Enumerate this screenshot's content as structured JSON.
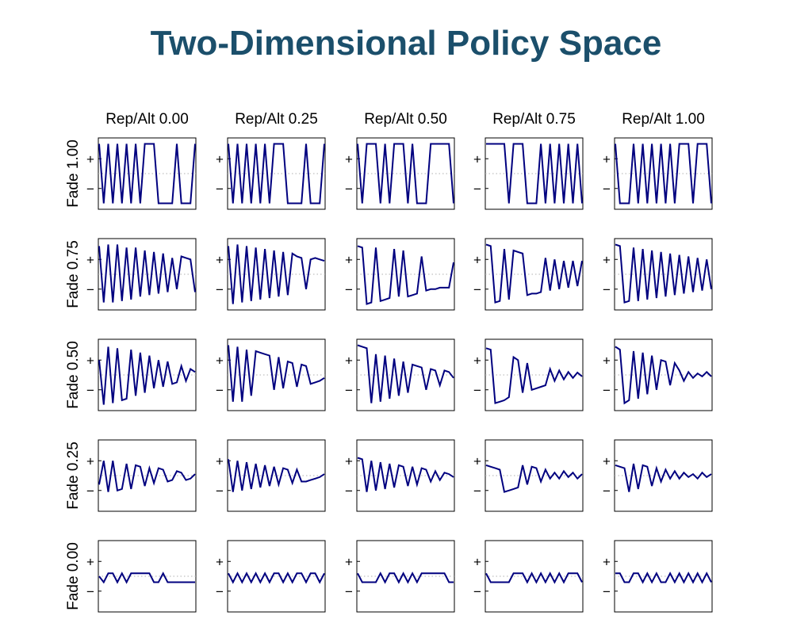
{
  "title": "Two-Dimensional Policy Space",
  "chart_data": {
    "type": "line",
    "columns": [
      "Rep/Alt 0.00",
      "Rep/Alt 0.25",
      "Rep/Alt 0.50",
      "Rep/Alt 0.75",
      "Rep/Alt 1.00"
    ],
    "rows": [
      "Fade 1.00",
      "Fade 0.75",
      "Fade 0.50",
      "Fade 0.25",
      "Fade 0.00"
    ],
    "y_tick_labels": [
      "+",
      "−"
    ],
    "ylim": [
      -1.2,
      1.2
    ],
    "line_color": "#00007f",
    "guide_color": "#b0b0b0",
    "grid": false,
    "panels": [
      [
        {
          "values": [
            1,
            -1,
            1,
            -1,
            1,
            -1,
            1,
            -1,
            1,
            -1,
            1,
            1,
            1,
            -1,
            -1,
            -1,
            -1,
            1,
            -1,
            -1,
            -1,
            1
          ]
        },
        {
          "values": [
            1,
            -1,
            1,
            -1,
            1,
            -1,
            1,
            -1,
            1,
            -1,
            1,
            1,
            1,
            -1,
            -1,
            -1,
            -1,
            1,
            -1,
            -1,
            -1,
            1
          ]
        },
        {
          "values": [
            1,
            -1,
            1,
            1,
            1,
            -1,
            1,
            -1,
            1,
            1,
            1,
            -1,
            1,
            -1,
            -1,
            -1,
            1,
            1,
            1,
            1,
            1,
            -1
          ]
        },
        {
          "values": [
            1,
            1,
            1,
            1,
            1,
            -1,
            1,
            1,
            1,
            -1,
            -1,
            -1,
            1,
            -1,
            1,
            -1,
            1,
            -1,
            1,
            -1,
            1,
            -1
          ]
        },
        {
          "values": [
            1,
            -1,
            -1,
            -1,
            1,
            -1,
            1,
            -1,
            1,
            -1,
            1,
            -1,
            1,
            -1,
            1,
            1,
            1,
            -1,
            1,
            1,
            1,
            -1
          ]
        }
      ],
      [
        {
          "values": [
            0.95,
            -0.95,
            1.0,
            -0.95,
            1.0,
            -0.9,
            0.9,
            -0.85,
            0.9,
            -0.75,
            0.8,
            -0.7,
            0.75,
            -0.65,
            0.7,
            -0.6,
            0.55,
            -0.5,
            0.6,
            0.55,
            0.5,
            -0.6
          ]
        },
        {
          "values": [
            0.95,
            -1.0,
            1.0,
            -0.95,
            0.95,
            -0.9,
            0.9,
            -0.85,
            0.85,
            -0.8,
            0.8,
            -0.75,
            0.75,
            -0.7,
            0.7,
            0.6,
            0.55,
            -0.5,
            0.5,
            0.55,
            0.5,
            0.45
          ]
        },
        {
          "values": [
            0.95,
            0.9,
            -1.0,
            -0.95,
            0.9,
            -0.9,
            -0.85,
            -0.8,
            0.85,
            -0.75,
            0.8,
            -0.75,
            -0.7,
            -0.65,
            0.6,
            -0.55,
            -0.5,
            -0.5,
            -0.45,
            -0.45,
            -0.45,
            0.4
          ]
        },
        {
          "values": [
            1.0,
            0.95,
            -0.95,
            -0.9,
            0.85,
            -0.85,
            0.8,
            0.75,
            0.7,
            -0.7,
            -0.65,
            -0.65,
            -0.6,
            0.55,
            -0.55,
            0.5,
            -0.5,
            0.45,
            -0.45,
            0.45,
            -0.4,
            0.45
          ]
        },
        {
          "values": [
            1.0,
            0.95,
            -0.95,
            -0.9,
            0.9,
            -0.9,
            0.85,
            -0.85,
            0.8,
            -0.8,
            0.75,
            -0.75,
            0.7,
            -0.7,
            0.65,
            -0.65,
            0.6,
            -0.6,
            0.55,
            -0.55,
            0.5,
            -0.5
          ]
        }
      ],
      [
        {
          "values": [
            0.5,
            -1.0,
            0.95,
            -0.95,
            0.9,
            -0.85,
            -0.8,
            0.85,
            -0.7,
            0.75,
            -0.6,
            0.65,
            -0.45,
            0.5,
            -0.4,
            0.45,
            -0.3,
            -0.25,
            0.3,
            -0.2,
            0.2,
            0.1
          ]
        },
        {
          "values": [
            1.0,
            -0.9,
            0.95,
            -0.9,
            0.85,
            -0.7,
            0.8,
            0.75,
            0.7,
            0.65,
            -0.5,
            0.6,
            -0.45,
            0.45,
            0.4,
            -0.4,
            0.35,
            0.3,
            -0.3,
            -0.25,
            -0.2,
            -0.1
          ]
        },
        {
          "values": [
            1.0,
            0.95,
            0.9,
            -0.95,
            0.7,
            -0.9,
            0.65,
            -0.8,
            0.55,
            -0.7,
            0.45,
            -0.6,
            0.35,
            0.3,
            0.25,
            -0.5,
            0.2,
            0.15,
            -0.35,
            0.15,
            0.1,
            -0.1
          ]
        },
        {
          "values": [
            0.9,
            0.85,
            -0.95,
            -0.9,
            -0.85,
            -0.75,
            0.6,
            0.5,
            -0.6,
            0.4,
            -0.5,
            -0.45,
            -0.4,
            -0.35,
            0.2,
            -0.2,
            0.15,
            -0.15,
            0.1,
            -0.1,
            0.08,
            -0.05
          ]
        },
        {
          "values": [
            0.95,
            0.85,
            -0.95,
            -0.85,
            0.8,
            -0.8,
            0.75,
            -0.65,
            0.65,
            -0.5,
            0.5,
            0.45,
            -0.35,
            0.4,
            0.15,
            -0.2,
            0.1,
            -0.1,
            0.05,
            -0.05,
            0.1,
            -0.05
          ]
        }
      ],
      [
        {
          "values": [
            -0.3,
            0.5,
            -0.55,
            0.5,
            -0.5,
            -0.45,
            0.4,
            -0.45,
            0.35,
            0.3,
            -0.35,
            0.25,
            -0.25,
            0.25,
            0.2,
            -0.2,
            -0.15,
            0.15,
            0.1,
            -0.15,
            -0.1,
            0.05
          ]
        },
        {
          "values": [
            0.55,
            -0.55,
            0.5,
            -0.5,
            0.45,
            -0.45,
            0.4,
            -0.4,
            0.35,
            -0.35,
            0.3,
            -0.3,
            0.25,
            0.2,
            -0.25,
            0.2,
            -0.2,
            -0.2,
            -0.15,
            -0.1,
            -0.05,
            0.05
          ]
        },
        {
          "values": [
            0.6,
            0.55,
            -0.55,
            0.5,
            -0.5,
            0.45,
            -0.45,
            0.4,
            -0.4,
            0.35,
            0.3,
            -0.35,
            0.3,
            -0.3,
            0.25,
            0.2,
            -0.2,
            0.15,
            -0.15,
            0.1,
            0.05,
            -0.05
          ]
        },
        {
          "values": [
            0.35,
            0.3,
            0.25,
            0.2,
            -0.55,
            -0.5,
            -0.45,
            -0.4,
            0.35,
            -0.3,
            0.3,
            0.25,
            -0.2,
            0.2,
            -0.1,
            0.1,
            -0.1,
            0.15,
            -0.05,
            0.1,
            -0.1,
            0.05
          ]
        },
        {
          "values": [
            0.35,
            0.3,
            0.25,
            -0.55,
            0.4,
            -0.45,
            0.35,
            0.3,
            -0.35,
            0.25,
            -0.2,
            0.2,
            -0.1,
            0.15,
            -0.1,
            0.1,
            -0.05,
            0.05,
            -0.1,
            0.1,
            -0.05,
            0.05
          ]
        }
      ],
      [
        {
          "values": [
            0.0,
            -0.2,
            0.1,
            0.1,
            -0.2,
            0.1,
            -0.2,
            0.1,
            0.1,
            0.1,
            0.1,
            0.1,
            -0.2,
            -0.2,
            0.1,
            -0.2,
            -0.2,
            -0.2,
            -0.2,
            -0.2,
            -0.2,
            -0.2
          ]
        },
        {
          "values": [
            0.1,
            -0.2,
            0.1,
            -0.2,
            0.1,
            -0.2,
            0.1,
            -0.2,
            0.1,
            -0.2,
            0.1,
            0.1,
            -0.2,
            0.1,
            -0.2,
            0.1,
            0.1,
            -0.2,
            0.1,
            0.1,
            -0.2,
            0.1
          ]
        },
        {
          "values": [
            0.1,
            -0.2,
            -0.2,
            -0.2,
            -0.2,
            0.1,
            -0.2,
            0.1,
            0.1,
            -0.2,
            0.1,
            -0.2,
            0.1,
            -0.2,
            0.1,
            0.1,
            0.1,
            0.1,
            0.1,
            0.1,
            -0.2,
            -0.2
          ]
        },
        {
          "values": [
            0.1,
            -0.2,
            -0.2,
            -0.2,
            -0.2,
            -0.2,
            0.1,
            0.1,
            0.1,
            -0.2,
            0.1,
            -0.2,
            0.1,
            -0.2,
            0.1,
            -0.2,
            0.1,
            -0.2,
            0.1,
            0.1,
            0.1,
            -0.2
          ]
        },
        {
          "values": [
            0.1,
            0.1,
            -0.2,
            -0.2,
            0.1,
            0.1,
            -0.2,
            0.1,
            -0.2,
            0.1,
            -0.2,
            -0.2,
            0.1,
            -0.2,
            0.1,
            -0.2,
            0.1,
            -0.2,
            0.1,
            -0.2,
            0.1,
            -0.2
          ]
        }
      ]
    ]
  }
}
